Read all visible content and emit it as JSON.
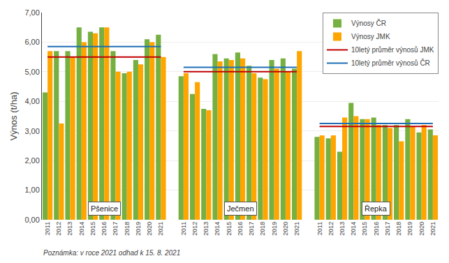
{
  "chart_data": {
    "type": "bar",
    "categories": [
      "2011",
      "2012",
      "2013",
      "2014",
      "2015",
      "2016",
      "2017",
      "2018",
      "2019",
      "2020",
      "2021",
      null,
      "2011",
      "2012",
      "2013",
      "2014",
      "2015",
      "2016",
      "2017",
      "2018",
      "2019",
      "2020",
      "2021",
      null,
      "2011",
      "2012",
      "2013",
      "2014",
      "2015",
      "2016",
      "2017",
      "2018",
      "2019",
      "2020",
      "2021"
    ],
    "series": [
      {
        "name": "Výnosy ČR",
        "type": "bar",
        "color": "#76b041",
        "values": [
          4.3,
          5.7,
          5.7,
          6.5,
          6.35,
          6.5,
          5.7,
          4.95,
          5.4,
          6.1,
          6.25,
          null,
          4.85,
          4.25,
          3.75,
          5.6,
          5.45,
          5.65,
          5.2,
          4.8,
          5.4,
          5.45,
          5.1,
          null,
          2.8,
          2.75,
          2.3,
          3.95,
          3.4,
          3.45,
          3.2,
          3.2,
          3.4,
          2.95,
          3.05
        ]
      },
      {
        "name": "Výnosy JMK",
        "type": "bar",
        "color": "#ffa500",
        "values": [
          5.7,
          3.25,
          5.5,
          6.0,
          6.3,
          6.5,
          5.0,
          5.0,
          5.25,
          6.0,
          5.5,
          null,
          4.95,
          4.65,
          3.7,
          5.35,
          5.4,
          5.45,
          4.95,
          4.75,
          5.1,
          5.0,
          5.7,
          null,
          2.85,
          2.85,
          3.45,
          3.5,
          3.4,
          3.2,
          3.1,
          2.65,
          3.15,
          3.2,
          2.85
        ]
      },
      {
        "name": "10letý průměr výnosů JMK",
        "type": "line",
        "color": "#c00000",
        "values": [
          5.5,
          5.5,
          5.5,
          5.5,
          5.5,
          5.5,
          5.5,
          5.5,
          5.5,
          5.5,
          5.5,
          null,
          5.0,
          5.0,
          5.0,
          5.0,
          5.0,
          5.0,
          5.0,
          5.0,
          5.0,
          5.0,
          5.0,
          null,
          3.15,
          3.15,
          3.15,
          3.15,
          3.15,
          3.15,
          3.15,
          3.15,
          3.15,
          3.15,
          3.15
        ]
      },
      {
        "name": "10letý průměr výnosů ČR",
        "type": "line",
        "color": "#1f6eb5",
        "values": [
          5.85,
          5.85,
          5.85,
          5.85,
          5.85,
          5.85,
          5.85,
          5.85,
          5.85,
          5.85,
          5.85,
          null,
          5.15,
          5.15,
          5.15,
          5.15,
          5.15,
          5.15,
          5.15,
          5.15,
          5.15,
          5.15,
          5.15,
          null,
          3.25,
          3.25,
          3.25,
          3.25,
          3.25,
          3.25,
          3.25,
          3.25,
          3.25,
          3.25,
          3.25
        ]
      }
    ],
    "ylabel": "Výnos (t/ha)",
    "ylim": [
      0.0,
      7.0
    ],
    "yticks": [
      {
        "value": 0,
        "label": "0,00"
      },
      {
        "value": 1,
        "label": "1,00"
      },
      {
        "value": 2,
        "label": "2,00"
      },
      {
        "value": 3,
        "label": "3,00"
      },
      {
        "value": 4,
        "label": "4,00"
      },
      {
        "value": 5,
        "label": "5,00"
      },
      {
        "value": 6,
        "label": "6,00"
      },
      {
        "value": 7,
        "label": "7,00"
      }
    ],
    "grid": true,
    "legend": "upper right",
    "annotations": [
      "Pšenice",
      "Ječmen",
      "Řepka",
      "Poznámka: v roce 2021 odhad k 15. 8. 2021"
    ]
  }
}
